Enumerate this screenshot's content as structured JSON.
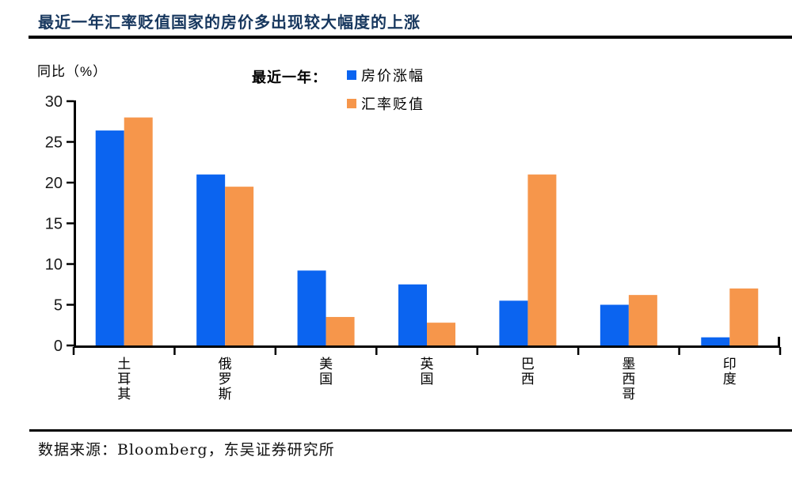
{
  "header": {
    "title": "最近一年汇率贬值国家的房价多出现较大幅度的上涨"
  },
  "legend": {
    "prefix": "最近一年："
  },
  "footer": {
    "source": "数据来源：Bloomberg，东吴证券研究所"
  },
  "colors": {
    "title": "#17375E",
    "axis": "#000000",
    "house_price": "#0B64F0",
    "fx_depreciation": "#F6964B"
  },
  "chart_data": {
    "type": "bar",
    "title": "最近一年汇率贬值国家的房价多出现较大幅度的上涨",
    "ylabel": "同比（%）",
    "xlabel": "",
    "categories": [
      "土耳其",
      "俄罗斯",
      "美国",
      "英国",
      "巴西",
      "墨西哥",
      "印度"
    ],
    "series": [
      {
        "name": "房价涨幅",
        "color": "#0B64F0",
        "values": [
          26.4,
          21.0,
          9.2,
          7.5,
          5.5,
          5.0,
          1.0
        ]
      },
      {
        "name": "汇率贬值",
        "color": "#F6964B",
        "values": [
          28.0,
          19.5,
          3.5,
          2.8,
          21.0,
          6.2,
          7.0
        ]
      }
    ],
    "ylim": [
      0,
      30
    ],
    "ytick_step": 5,
    "yticks": [
      0,
      5,
      10,
      15,
      20,
      25,
      30
    ],
    "grid": false,
    "legend_position": "top-center"
  }
}
